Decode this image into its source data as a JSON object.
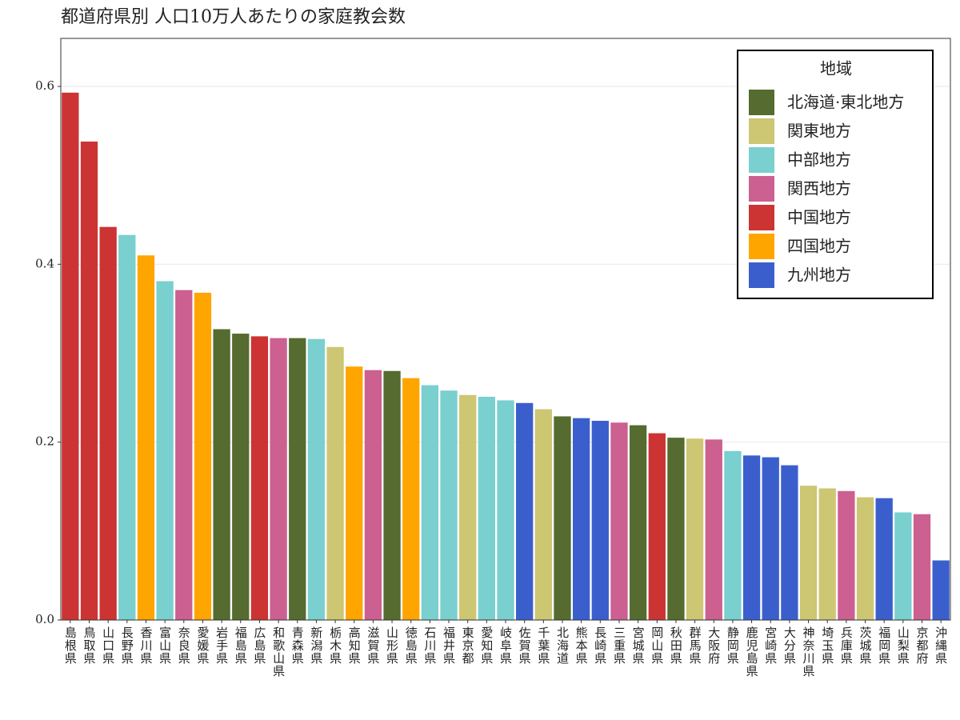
{
  "chart_data": {
    "type": "bar",
    "title": "都道府県別 人口10万人あたりの家庭教会数",
    "categories": [
      "島根県",
      "鳥取県",
      "山口県",
      "長野県",
      "香川県",
      "富山県",
      "奈良県",
      "愛媛県",
      "岩手県",
      "福島県",
      "広島県",
      "和歌山県",
      "青森県",
      "新潟県",
      "栃木県",
      "高知県",
      "滋賀県",
      "山形県",
      "徳島県",
      "石川県",
      "福井県",
      "東京都",
      "愛知県",
      "岐阜県",
      "佐賀県",
      "千葉県",
      "北海道",
      "熊本県",
      "長崎県",
      "三重県",
      "宮城県",
      "岡山県",
      "秋田県",
      "群馬県",
      "大阪府",
      "静岡県",
      "鹿児島県",
      "宮崎県",
      "大分県",
      "神奈川県",
      "埼玉県",
      "兵庫県",
      "茨城県",
      "福岡県",
      "山梨県",
      "京都府",
      "沖縄県"
    ],
    "values": [
      0.593,
      0.538,
      0.442,
      0.433,
      0.41,
      0.381,
      0.371,
      0.368,
      0.327,
      0.322,
      0.319,
      0.317,
      0.317,
      0.316,
      0.307,
      0.285,
      0.281,
      0.28,
      0.272,
      0.264,
      0.258,
      0.253,
      0.251,
      0.247,
      0.244,
      0.237,
      0.229,
      0.227,
      0.224,
      0.222,
      0.219,
      0.21,
      0.205,
      0.204,
      0.203,
      0.19,
      0.185,
      0.183,
      0.174,
      0.151,
      0.148,
      0.145,
      0.138,
      0.137,
      0.121,
      0.119,
      0.067
    ],
    "colors": [
      "#cc3333",
      "#cc3333",
      "#cc3333",
      "#7acfcf",
      "#ffa500",
      "#7acfcf",
      "#cc6090",
      "#ffa500",
      "#556b2f",
      "#556b2f",
      "#cc3333",
      "#cc6090",
      "#556b2f",
      "#7acfcf",
      "#cdc673",
      "#ffa500",
      "#cc6090",
      "#556b2f",
      "#ffa500",
      "#7acfcf",
      "#7acfcf",
      "#cdc673",
      "#7acfcf",
      "#7acfcf",
      "#3a5fcd",
      "#cdc673",
      "#556b2f",
      "#3a5fcd",
      "#3a5fcd",
      "#cc6090",
      "#556b2f",
      "#cc3333",
      "#556b2f",
      "#cdc673",
      "#cc6090",
      "#7acfcf",
      "#3a5fcd",
      "#3a5fcd",
      "#3a5fcd",
      "#cdc673",
      "#cdc673",
      "#cc6090",
      "#cdc673",
      "#3a5fcd",
      "#7acfcf",
      "#cc6090",
      "#3a5fcd"
    ],
    "ylim": [
      0,
      0.654
    ],
    "yticks": [
      {
        "value": 0,
        "label": "0.0"
      },
      {
        "value": 0.2,
        "label": "0.2"
      },
      {
        "value": 0.4,
        "label": "0.4"
      },
      {
        "value": 0.6,
        "label": "0.6"
      }
    ],
    "grid": true,
    "legend": {
      "title": "地域",
      "position": "top-right",
      "items": [
        {
          "name": "北海道·東北地方",
          "color": "#556b2f"
        },
        {
          "name": "関東地方",
          "color": "#cdc673"
        },
        {
          "name": "中部地方",
          "color": "#7acfcf"
        },
        {
          "name": "関西地方",
          "color": "#cc6090"
        },
        {
          "name": "中国地方",
          "color": "#cc3333"
        },
        {
          "name": "四国地方",
          "color": "#ffa500"
        },
        {
          "name": "九州地方",
          "color": "#3a5fcd"
        }
      ]
    }
  }
}
